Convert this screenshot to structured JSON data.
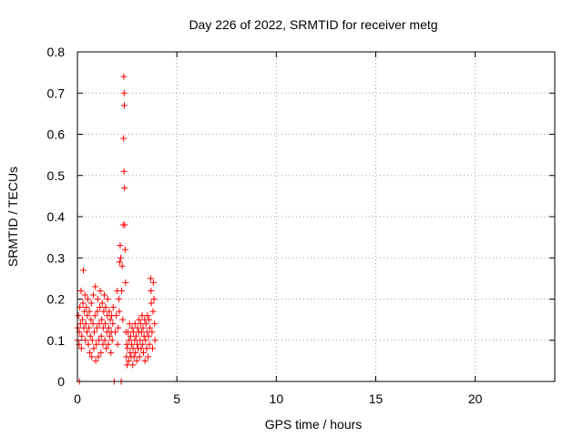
{
  "chart_data": {
    "type": "scatter",
    "title": "Day 226 of 2022, SRMTID for receiver metg",
    "xlabel": "GPS time / hours",
    "ylabel": "SRMTID / TECUs",
    "xlim": [
      0,
      24
    ],
    "ylim": [
      0,
      0.8
    ],
    "x_ticks": [
      "0",
      "5",
      "10",
      "15",
      "20"
    ],
    "y_ticks": [
      "0",
      "0.1",
      "0.2",
      "0.3",
      "0.4",
      "0.5",
      "0.6",
      "0.7",
      "0.8"
    ],
    "grid": true,
    "marker": "plus",
    "series_color": "#ff0000",
    "series": [
      {
        "points": [
          [
            0.0,
            0.1
          ],
          [
            0.02,
            0.13
          ],
          [
            0.05,
            0.16
          ],
          [
            0.08,
            0.09
          ],
          [
            0.1,
            0.12
          ],
          [
            0.1,
            0.0
          ],
          [
            0.12,
            0.18
          ],
          [
            0.15,
            0.14
          ],
          [
            0.18,
            0.22
          ],
          [
            0.2,
            0.08
          ],
          [
            0.22,
            0.11
          ],
          [
            0.25,
            0.15
          ],
          [
            0.28,
            0.19
          ],
          [
            0.3,
            0.27
          ],
          [
            0.32,
            0.13
          ],
          [
            0.35,
            0.17
          ],
          [
            0.38,
            0.21
          ],
          [
            0.4,
            0.1
          ],
          [
            0.42,
            0.14
          ],
          [
            0.45,
            0.18
          ],
          [
            0.48,
            0.12
          ],
          [
            0.5,
            0.16
          ],
          [
            0.52,
            0.2
          ],
          [
            0.55,
            0.09
          ],
          [
            0.58,
            0.13
          ],
          [
            0.6,
            0.17
          ],
          [
            0.62,
            0.07
          ],
          [
            0.65,
            0.11
          ],
          [
            0.68,
            0.15
          ],
          [
            0.7,
            0.19
          ],
          [
            0.72,
            0.06
          ],
          [
            0.75,
            0.1
          ],
          [
            0.78,
            0.14
          ],
          [
            0.8,
            0.21
          ],
          [
            0.82,
            0.08
          ],
          [
            0.85,
            0.12
          ],
          [
            0.88,
            0.16
          ],
          [
            0.9,
            0.23
          ],
          [
            0.92,
            0.05
          ],
          [
            0.95,
            0.09
          ],
          [
            0.98,
            0.13
          ],
          [
            1.0,
            0.17
          ],
          [
            1.02,
            0.2
          ],
          [
            1.05,
            0.06
          ],
          [
            1.08,
            0.1
          ],
          [
            1.1,
            0.14
          ],
          [
            1.12,
            0.18
          ],
          [
            1.15,
            0.22
          ],
          [
            1.18,
            0.07
          ],
          [
            1.2,
            0.11
          ],
          [
            1.22,
            0.15
          ],
          [
            1.25,
            0.19
          ],
          [
            1.28,
            0.09
          ],
          [
            1.3,
            0.13
          ],
          [
            1.32,
            0.17
          ],
          [
            1.35,
            0.21
          ],
          [
            1.38,
            0.1
          ],
          [
            1.4,
            0.14
          ],
          [
            1.42,
            0.18
          ],
          [
            1.45,
            0.08
          ],
          [
            1.48,
            0.12
          ],
          [
            1.5,
            0.16
          ],
          [
            1.52,
            0.2
          ],
          [
            1.55,
            0.09
          ],
          [
            1.58,
            0.13
          ],
          [
            1.6,
            0.17
          ],
          [
            1.62,
            0.11
          ],
          [
            1.65,
            0.15
          ],
          [
            1.68,
            0.07
          ],
          [
            1.7,
            0.12
          ],
          [
            1.72,
            0.16
          ],
          [
            1.75,
            0.1
          ],
          [
            1.78,
            0.14
          ],
          [
            1.8,
            0.18
          ],
          [
            1.85,
            0.0
          ],
          [
            1.9,
            0.12
          ],
          [
            1.95,
            0.16
          ],
          [
            2.0,
            0.22
          ],
          [
            2.02,
            0.09
          ],
          [
            2.05,
            0.13
          ],
          [
            2.08,
            0.2
          ],
          [
            2.1,
            0.17
          ],
          [
            2.12,
            0.29
          ],
          [
            2.15,
            0.33
          ],
          [
            2.18,
            0.3
          ],
          [
            2.2,
            0.0
          ],
          [
            2.22,
            0.22
          ],
          [
            2.25,
            0.28
          ],
          [
            2.28,
            0.15
          ],
          [
            2.3,
            0.38
          ],
          [
            2.32,
            0.59
          ],
          [
            2.33,
            0.74
          ],
          [
            2.34,
            0.51
          ],
          [
            2.35,
            0.7
          ],
          [
            2.36,
            0.67
          ],
          [
            2.37,
            0.47
          ],
          [
            2.38,
            0.38
          ],
          [
            2.4,
            0.32
          ],
          [
            2.42,
            0.24
          ],
          [
            2.44,
            0.12
          ],
          [
            2.46,
            0.06
          ],
          [
            2.48,
            0.09
          ],
          [
            2.5,
            0.04
          ],
          [
            2.52,
            0.08
          ],
          [
            2.55,
            0.12
          ],
          [
            2.58,
            0.05
          ],
          [
            2.6,
            0.1
          ],
          [
            2.62,
            0.14
          ],
          [
            2.65,
            0.07
          ],
          [
            2.68,
            0.11
          ],
          [
            2.7,
            0.06
          ],
          [
            2.72,
            0.09
          ],
          [
            2.75,
            0.13
          ],
          [
            2.78,
            0.04
          ],
          [
            2.8,
            0.08
          ],
          [
            2.82,
            0.12
          ],
          [
            2.85,
            0.06
          ],
          [
            2.88,
            0.1
          ],
          [
            2.9,
            0.14
          ],
          [
            2.92,
            0.07
          ],
          [
            2.95,
            0.11
          ],
          [
            2.98,
            0.05
          ],
          [
            3.0,
            0.09
          ],
          [
            3.02,
            0.13
          ],
          [
            3.05,
            0.08
          ],
          [
            3.08,
            0.12
          ],
          [
            3.1,
            0.15
          ],
          [
            3.12,
            0.06
          ],
          [
            3.15,
            0.1
          ],
          [
            3.18,
            0.14
          ],
          [
            3.2,
            0.08
          ],
          [
            3.22,
            0.12
          ],
          [
            3.25,
            0.16
          ],
          [
            3.28,
            0.09
          ],
          [
            3.3,
            0.13
          ],
          [
            3.32,
            0.07
          ],
          [
            3.35,
            0.11
          ],
          [
            3.38,
            0.15
          ],
          [
            3.4,
            0.05
          ],
          [
            3.42,
            0.1
          ],
          [
            3.45,
            0.14
          ],
          [
            3.48,
            0.08
          ],
          [
            3.5,
            0.12
          ],
          [
            3.52,
            0.16
          ],
          [
            3.55,
            0.06
          ],
          [
            3.58,
            0.11
          ],
          [
            3.6,
            0.15
          ],
          [
            3.62,
            0.09
          ],
          [
            3.65,
            0.13
          ],
          [
            3.68,
            0.25
          ],
          [
            3.7,
            0.22
          ],
          [
            3.72,
            0.19
          ],
          [
            3.75,
            0.12
          ],
          [
            3.78,
            0.08
          ],
          [
            3.8,
            0.17
          ],
          [
            3.82,
            0.24
          ],
          [
            3.85,
            0.2
          ],
          [
            3.88,
            0.14
          ],
          [
            3.9,
            0.1
          ]
        ]
      }
    ]
  }
}
